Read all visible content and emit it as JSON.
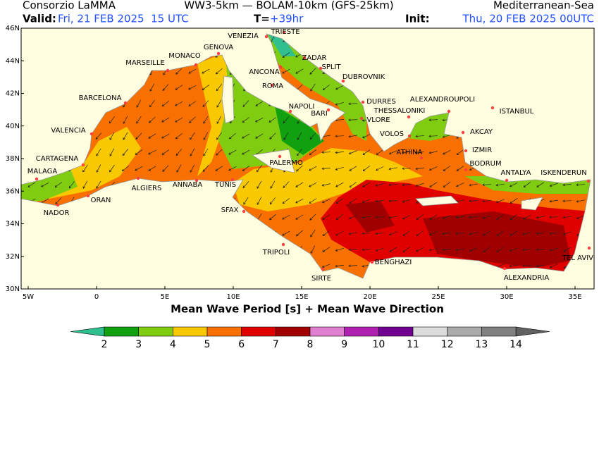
{
  "header": {
    "institute": "Consorzio LaMMA",
    "model": "WW3-5km — BOLAM-10km (GFS-25km)",
    "domain": "Mediterranean-Sea",
    "valid_label": "Valid:",
    "valid": "Fri, 21 FEB 2025  15 UTC",
    "t_label": "T=",
    "t_value": "+39hr",
    "init_label": "Init:",
    "init": "Thu, 20 FEB 2025 00UTC"
  },
  "map": {
    "lat_ticks": [
      "46N",
      "44N",
      "42N",
      "40N",
      "38N",
      "36N",
      "34N",
      "32N",
      "30N"
    ],
    "lon_ticks": [
      "5W",
      "0",
      "5E",
      "10E",
      "15E",
      "20E",
      "25E",
      "30E",
      "35E"
    ],
    "xlabel": "Mean Wave Period [s] + Mean Wave Direction",
    "cities": [
      "TRIESTE",
      "VENEZIA",
      "ZADAR",
      "GENOVA",
      "MONACO",
      "MARSEILLE",
      "ANCONA",
      "SPLIT",
      "ROMA",
      "DUBROVNIK",
      "BARCELONA",
      "DURRES",
      "ALEXANDROUPOLI",
      "NAPOLI",
      "THESSALONIKI",
      "ISTANBUL",
      "BARI",
      "VLORE",
      "VALENCIA",
      "AKCAY",
      "VOLOS",
      "ATHINA",
      "IZMIR",
      "CARTAGENA",
      "PALERMO",
      "BODRUM",
      "MALAGA",
      "ANTALYA",
      "ISKENDERUN",
      "ALGIERS",
      "ANNABA",
      "TUNIS",
      "ORAN",
      "SFAX",
      "NADOR",
      "TRIPOLI",
      "BENGHAZI",
      "TEL AVIV",
      "SIRTE",
      "ALEXANDRIA"
    ]
  },
  "colorbar": {
    "levels": [
      2,
      3,
      4,
      5,
      6,
      7,
      8,
      9,
      10,
      11,
      12,
      13,
      14
    ],
    "under_color": "#30c090",
    "over_color": "#606060",
    "colors": [
      "#10a010",
      "#80cc10",
      "#f8c800",
      "#f87000",
      "#e00000",
      "#a00000",
      "#e080d0",
      "#b020b0",
      "#700090",
      "#dcdcdc",
      "#aaaaaa",
      "#808080"
    ]
  }
}
